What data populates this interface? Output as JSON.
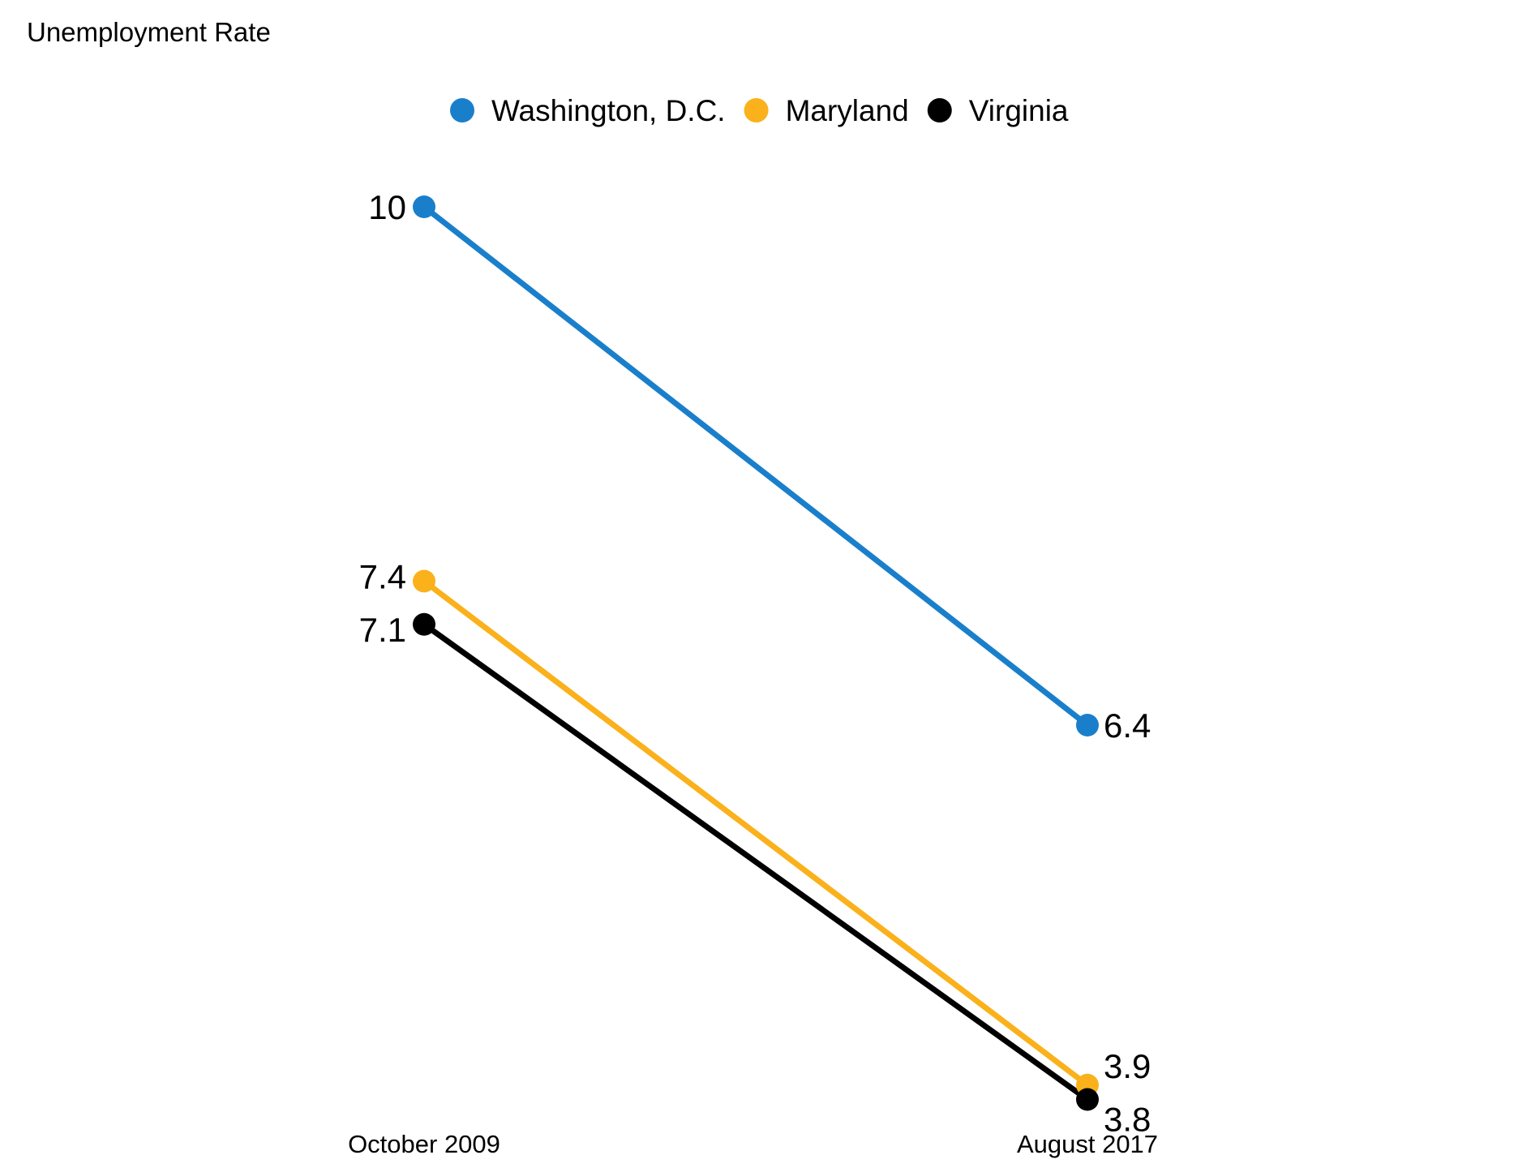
{
  "chart_data": {
    "type": "line",
    "title": "Unemployment Rate",
    "categories": [
      "October 2009",
      "August 2017"
    ],
    "series": [
      {
        "name": "Washington, D.C.",
        "color": "#1a7fcb",
        "values": [
          10,
          6.4
        ],
        "labels": [
          "10",
          "6.4"
        ]
      },
      {
        "name": "Maryland",
        "color": "#fab11b",
        "values": [
          7.4,
          3.9
        ],
        "labels": [
          "7.4",
          "3.9"
        ]
      },
      {
        "name": "Virginia",
        "color": "#000000",
        "values": [
          7.1,
          3.8
        ],
        "labels": [
          "7.1",
          "3.8"
        ]
      }
    ],
    "ylim": [
      3.2,
      10.9
    ],
    "grid": false,
    "legend": "top-center",
    "y_axis_visible": false
  }
}
